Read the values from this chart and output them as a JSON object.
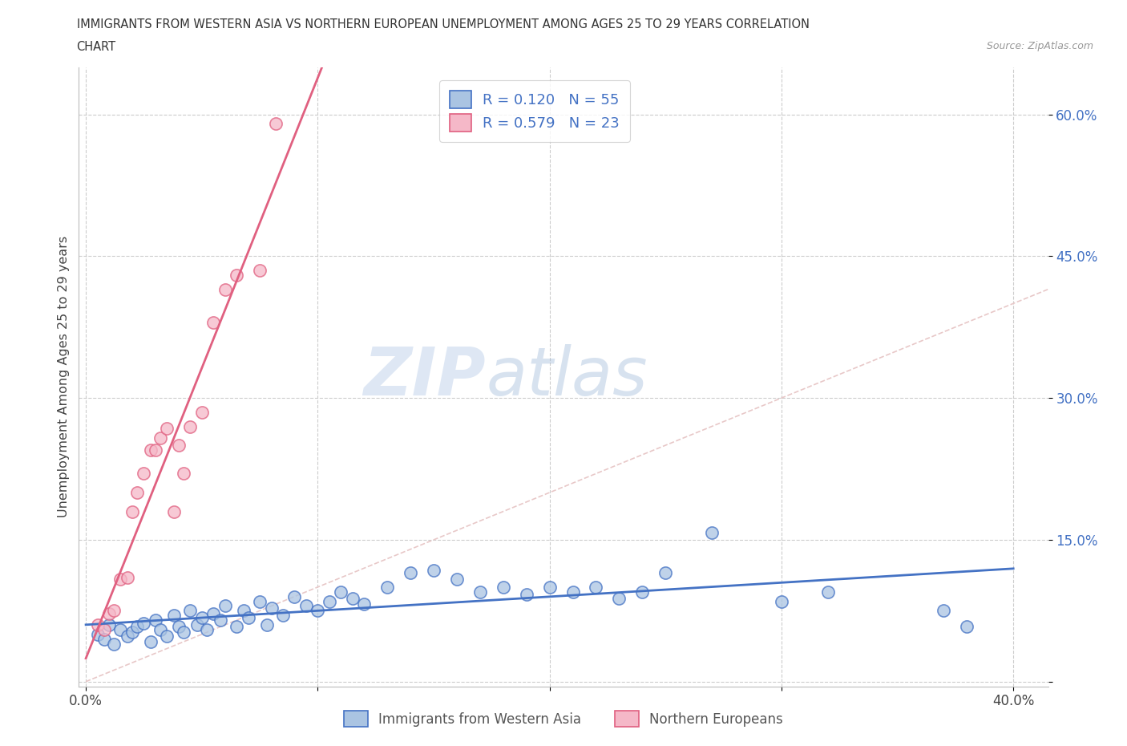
{
  "title_line1": "IMMIGRANTS FROM WESTERN ASIA VS NORTHERN EUROPEAN UNEMPLOYMENT AMONG AGES 25 TO 29 YEARS CORRELATION",
  "title_line2": "CHART",
  "source_text": "Source: ZipAtlas.com",
  "ylabel": "Unemployment Among Ages 25 to 29 years",
  "background_color": "#ffffff",
  "watermark_zip": "ZIP",
  "watermark_atlas": "atlas",
  "color_blue_face": "#aac4e2",
  "color_blue_edge": "#4472c4",
  "color_pink_face": "#f5b8c8",
  "color_pink_edge": "#e06080",
  "line_blue": "#4472c4",
  "line_pink": "#e06080",
  "line_diagonal_color": "#e8c8c8",
  "grid_color": "#cccccc",
  "legend_label1": "R = 0.120   N = 55",
  "legend_label2": "R = 0.579   N = 23",
  "bottom_label1": "Immigrants from Western Asia",
  "bottom_label2": "Northern Europeans",
  "blue_x": [
    0.005,
    0.008,
    0.01,
    0.012,
    0.015,
    0.018,
    0.02,
    0.022,
    0.025,
    0.028,
    0.03,
    0.032,
    0.035,
    0.038,
    0.04,
    0.042,
    0.045,
    0.048,
    0.05,
    0.052,
    0.055,
    0.058,
    0.06,
    0.065,
    0.068,
    0.07,
    0.075,
    0.078,
    0.08,
    0.085,
    0.09,
    0.095,
    0.1,
    0.105,
    0.11,
    0.115,
    0.12,
    0.13,
    0.14,
    0.15,
    0.16,
    0.17,
    0.18,
    0.19,
    0.2,
    0.21,
    0.22,
    0.23,
    0.24,
    0.25,
    0.27,
    0.3,
    0.32,
    0.37,
    0.38
  ],
  "blue_y": [
    0.05,
    0.045,
    0.06,
    0.04,
    0.055,
    0.048,
    0.052,
    0.058,
    0.062,
    0.042,
    0.065,
    0.055,
    0.048,
    0.07,
    0.058,
    0.052,
    0.075,
    0.06,
    0.068,
    0.055,
    0.072,
    0.065,
    0.08,
    0.058,
    0.075,
    0.068,
    0.085,
    0.06,
    0.078,
    0.07,
    0.09,
    0.08,
    0.075,
    0.085,
    0.095,
    0.088,
    0.082,
    0.1,
    0.115,
    0.118,
    0.108,
    0.095,
    0.1,
    0.092,
    0.1,
    0.095,
    0.1,
    0.088,
    0.095,
    0.115,
    0.158,
    0.085,
    0.095,
    0.075,
    0.058
  ],
  "pink_x": [
    0.005,
    0.008,
    0.01,
    0.012,
    0.015,
    0.018,
    0.02,
    0.022,
    0.025,
    0.028,
    0.03,
    0.032,
    0.035,
    0.038,
    0.04,
    0.042,
    0.045,
    0.05,
    0.055,
    0.06,
    0.065,
    0.075,
    0.082
  ],
  "pink_y": [
    0.06,
    0.055,
    0.072,
    0.075,
    0.108,
    0.11,
    0.18,
    0.2,
    0.22,
    0.245,
    0.245,
    0.258,
    0.268,
    0.18,
    0.25,
    0.22,
    0.27,
    0.285,
    0.38,
    0.415,
    0.43,
    0.435,
    0.59
  ],
  "xlim": [
    0.0,
    0.4
  ],
  "ylim": [
    0.0,
    0.65
  ],
  "xtick_vals": [
    0.0,
    0.1,
    0.2,
    0.3,
    0.4
  ],
  "ytick_vals": [
    0.0,
    0.15,
    0.3,
    0.45,
    0.6
  ]
}
